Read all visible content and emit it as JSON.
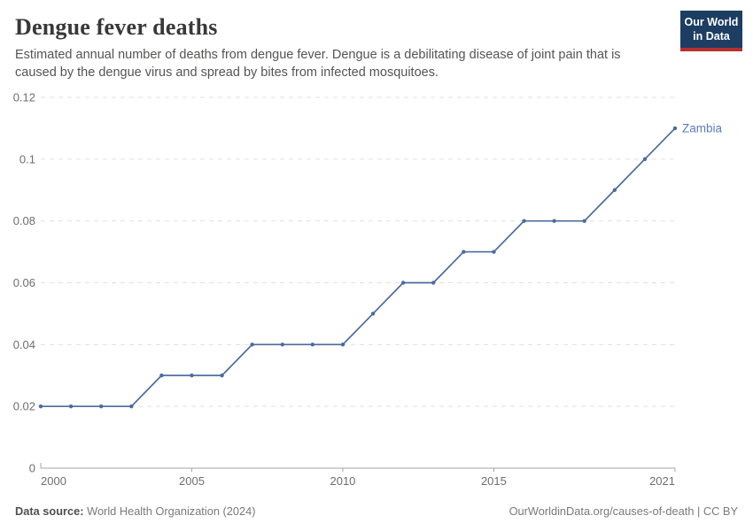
{
  "header": {
    "title": "Dengue fever deaths",
    "subtitle": "Estimated annual number of deaths from dengue fever. Dengue is a debilitating disease of joint pain that is caused by the dengue virus and spread by bites from infected mosquitoes.",
    "logo": {
      "line1": "Our World",
      "line2": "in Data",
      "bg_color": "#1d3d63",
      "bar_color": "#b5302f"
    }
  },
  "chart_data": {
    "type": "line",
    "title": "Dengue fever deaths",
    "x": [
      2000,
      2001,
      2002,
      2003,
      2004,
      2005,
      2006,
      2007,
      2008,
      2009,
      2010,
      2011,
      2012,
      2013,
      2014,
      2015,
      2016,
      2017,
      2018,
      2019,
      2020,
      2021
    ],
    "series": [
      {
        "name": "Zambia",
        "color": "#4c6a9c",
        "label_color": "#5b7cb9",
        "values": [
          0.02,
          0.02,
          0.02,
          0.02,
          0.03,
          0.03,
          0.03,
          0.04,
          0.04,
          0.04,
          0.04,
          0.05,
          0.06,
          0.06,
          0.07,
          0.07,
          0.08,
          0.08,
          0.08,
          0.09,
          0.1,
          0.11
        ]
      }
    ],
    "xlim": [
      2000,
      2021
    ],
    "ylim": [
      0,
      0.12
    ],
    "x_ticks": [
      {
        "year": 2000,
        "label": "2000",
        "align": "start"
      },
      {
        "year": 2005,
        "label": "2005",
        "align": "middle"
      },
      {
        "year": 2010,
        "label": "2010",
        "align": "middle"
      },
      {
        "year": 2015,
        "label": "2015",
        "align": "middle"
      },
      {
        "year": 2021,
        "label": "2021",
        "align": "end"
      }
    ],
    "y_ticks": [
      {
        "value": 0,
        "label": "0"
      },
      {
        "value": 0.02,
        "label": "0.02"
      },
      {
        "value": 0.04,
        "label": "0.04"
      },
      {
        "value": 0.06,
        "label": "0.06"
      },
      {
        "value": 0.08,
        "label": "0.08"
      },
      {
        "value": 0.1,
        "label": "0.1"
      },
      {
        "value": 0.12,
        "label": "0.12"
      }
    ],
    "grid": "horizontal-dashed",
    "legend_position": "end-of-line"
  },
  "footer": {
    "source_label": "Data source:",
    "source_value": "World Health Organization (2024)",
    "right_text": "OurWorldinData.org/causes-of-death | CC BY"
  }
}
